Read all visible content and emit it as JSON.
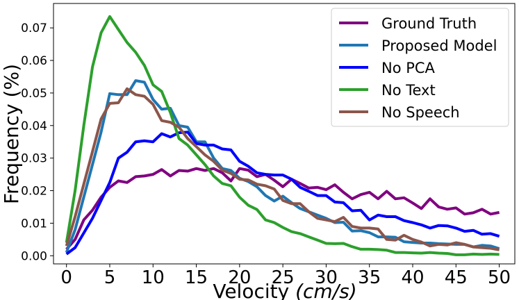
{
  "chart_data": {
    "type": "line",
    "title": "",
    "xlabel": "Velocity (cm/s)",
    "xlabel_main": "Velocity ",
    "xlabel_unit": "(cm/s)",
    "ylabel": "Frequency (%)",
    "xlim": [
      -1.5,
      51.8
    ],
    "ylim": [
      -0.0025,
      0.0775
    ],
    "x_ticks": [
      0,
      5,
      10,
      15,
      20,
      25,
      30,
      35,
      40,
      45,
      50
    ],
    "y_ticks": [
      0.0,
      0.01,
      0.02,
      0.03,
      0.04,
      0.05,
      0.06,
      0.07
    ],
    "y_tick_labels": [
      "0.00",
      "0.01",
      "0.02",
      "0.03",
      "0.04",
      "0.05",
      "0.06",
      "0.07"
    ],
    "legend_position": "top-right",
    "x": [
      0,
      1,
      2,
      3,
      4,
      5,
      6,
      7,
      8,
      9,
      10,
      11,
      12,
      13,
      14,
      15,
      16,
      17,
      18,
      19,
      20,
      21,
      22,
      23,
      24,
      25,
      26,
      27,
      28,
      29,
      30,
      31,
      32,
      33,
      34,
      35,
      36,
      37,
      38,
      39,
      40,
      41,
      42,
      43,
      44,
      45,
      46,
      47,
      48,
      49,
      50
    ],
    "series": [
      {
        "name": "Ground Truth",
        "color": "#800080",
        "values": [
          0.002,
          0.005,
          0.011,
          0.014,
          0.018,
          0.021,
          0.023,
          0.0225,
          0.0243,
          0.0245,
          0.025,
          0.0265,
          0.0245,
          0.0262,
          0.026,
          0.0268,
          0.0262,
          0.0268,
          0.0255,
          0.023,
          0.0268,
          0.0263,
          0.0243,
          0.025,
          0.0232,
          0.0212,
          0.0235,
          0.0222,
          0.0208,
          0.021,
          0.0203,
          0.0218,
          0.0195,
          0.0175,
          0.0188,
          0.0195,
          0.0175,
          0.0198,
          0.0175,
          0.0178,
          0.0162,
          0.0145,
          0.0175,
          0.015,
          0.0143,
          0.0147,
          0.0128,
          0.0132,
          0.0143,
          0.0128,
          0.0133
        ]
      },
      {
        "name": "Proposed Model",
        "color": "#1f77b4",
        "values": [
          0.001,
          0.008,
          0.018,
          0.028,
          0.038,
          0.0498,
          0.0495,
          0.0495,
          0.0538,
          0.0533,
          0.048,
          0.045,
          0.0453,
          0.04,
          0.0395,
          0.035,
          0.035,
          0.03,
          0.0268,
          0.0262,
          0.0238,
          0.0228,
          0.0212,
          0.0185,
          0.0168,
          0.0183,
          0.0163,
          0.0145,
          0.0135,
          0.0125,
          0.0115,
          0.0102,
          0.0103,
          0.0076,
          0.0077,
          0.0071,
          0.0058,
          0.0058,
          0.0057,
          0.0043,
          0.0041,
          0.0039,
          0.0039,
          0.0037,
          0.0036,
          0.0035,
          0.0035,
          0.0027,
          0.0032,
          0.003,
          0.0022
        ]
      },
      {
        "name": "No PCA",
        "color": "#0000ff",
        "values": [
          0.0005,
          0.0025,
          0.007,
          0.0115,
          0.017,
          0.0225,
          0.03,
          0.0318,
          0.035,
          0.0353,
          0.035,
          0.0375,
          0.0365,
          0.0378,
          0.038,
          0.0345,
          0.034,
          0.034,
          0.0328,
          0.0325,
          0.029,
          0.0275,
          0.0255,
          0.025,
          0.0248,
          0.0248,
          0.0235,
          0.021,
          0.0198,
          0.0185,
          0.0185,
          0.0165,
          0.0163,
          0.0138,
          0.014,
          0.011,
          0.0125,
          0.012,
          0.012,
          0.0108,
          0.0102,
          0.0095,
          0.0085,
          0.0093,
          0.0092,
          0.0085,
          0.0075,
          0.0078,
          0.0066,
          0.0068,
          0.006
        ]
      },
      {
        "name": "No Text",
        "color": "#2ca02c",
        "values": [
          0.004,
          0.02,
          0.04,
          0.058,
          0.0685,
          0.0735,
          0.0695,
          0.0655,
          0.0625,
          0.0585,
          0.0525,
          0.0505,
          0.044,
          0.036,
          0.034,
          0.031,
          0.028,
          0.0245,
          0.0222,
          0.0215,
          0.018,
          0.0155,
          0.0142,
          0.011,
          0.0102,
          0.0087,
          0.0074,
          0.0068,
          0.0058,
          0.0048,
          0.0038,
          0.0037,
          0.0038,
          0.0028,
          0.002,
          0.002,
          0.0019,
          0.0017,
          0.001,
          0.001,
          0.0009,
          0.0008,
          0.001,
          0.0008,
          0.0007,
          0.0003,
          0.0003,
          0.0005,
          0.0004,
          0.0005,
          0.0004
        ]
      },
      {
        "name": "No Speech",
        "color": "#8c564b",
        "values": [
          0.003,
          0.012,
          0.022,
          0.032,
          0.042,
          0.0468,
          0.047,
          0.0513,
          0.0495,
          0.049,
          0.0465,
          0.0415,
          0.041,
          0.0395,
          0.036,
          0.0335,
          0.031,
          0.029,
          0.0263,
          0.0253,
          0.0235,
          0.0233,
          0.022,
          0.0215,
          0.0205,
          0.017,
          0.016,
          0.016,
          0.0135,
          0.0115,
          0.011,
          0.0105,
          0.0118,
          0.009,
          0.0085,
          0.0085,
          0.0082,
          0.005,
          0.0048,
          0.0063,
          0.005,
          0.0042,
          0.003,
          0.0035,
          0.0033,
          0.004,
          0.0035,
          0.0027,
          0.0025,
          0.0023,
          0.0018
        ]
      }
    ]
  }
}
